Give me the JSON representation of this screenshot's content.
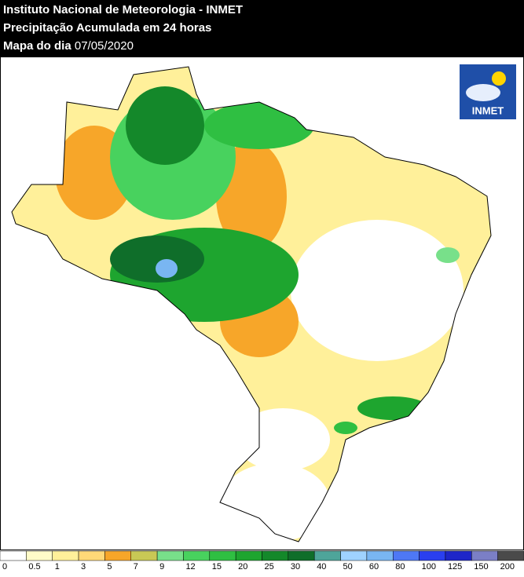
{
  "header": {
    "line1": "Instituto Nacional de Meteorologia - INMET",
    "line2": "Precipitação Acumulada em 24 horas",
    "line3_label": "Mapa do dia",
    "line3_date": "07/05/2020"
  },
  "logo": {
    "text": "INMET"
  },
  "legend": {
    "items": [
      {
        "label": "0",
        "color": "#ffffff"
      },
      {
        "label": "0.5",
        "color": "#fffbc8"
      },
      {
        "label": "1",
        "color": "#fff09a"
      },
      {
        "label": "3",
        "color": "#ffd978"
      },
      {
        "label": "5",
        "color": "#f7a629"
      },
      {
        "label": "7",
        "color": "#c8c855"
      },
      {
        "label": "9",
        "color": "#78e08a"
      },
      {
        "label": "12",
        "color": "#48d25e"
      },
      {
        "label": "15",
        "color": "#2fbf42"
      },
      {
        "label": "20",
        "color": "#1ea52f"
      },
      {
        "label": "25",
        "color": "#14882a"
      },
      {
        "label": "30",
        "color": "#0f6e2a"
      },
      {
        "label": "40",
        "color": "#4ea59a"
      },
      {
        "label": "50",
        "color": "#9fd2ff"
      },
      {
        "label": "60",
        "color": "#79b6f2"
      },
      {
        "label": "80",
        "color": "#4e78f5"
      },
      {
        "label": "100",
        "color": "#2a3ff0"
      },
      {
        "label": "125",
        "color": "#1e26c8"
      },
      {
        "label": "150",
        "color": "#7b7fc6"
      },
      {
        "label": "200",
        "color": "#4a4a4a"
      }
    ]
  }
}
